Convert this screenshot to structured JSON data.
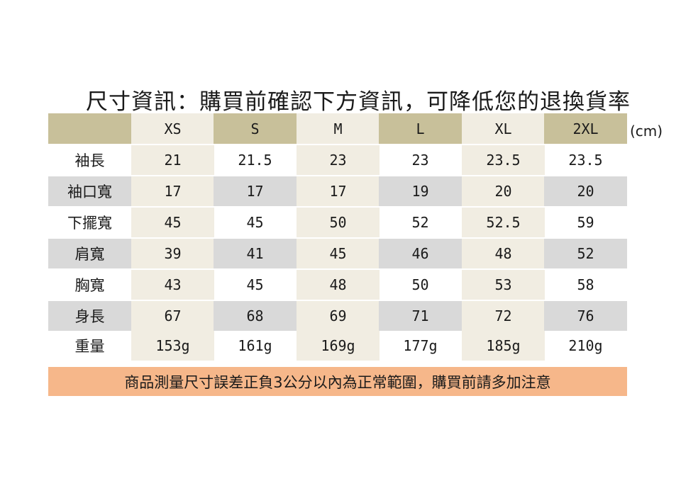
{
  "title": "尺寸資訊：購買前確認下方資訊，可降低您的退換貨率",
  "unit": "(cm)",
  "sizes": [
    "XS",
    "S",
    "M",
    "L",
    "XL",
    "2XL"
  ],
  "rows": [
    {
      "label": "袖長",
      "values": [
        "21",
        "21.5",
        "23",
        "23",
        "23.5",
        "23.5"
      ]
    },
    {
      "label": "袖口寬",
      "values": [
        "17",
        "17",
        "17",
        "19",
        "20",
        "20"
      ]
    },
    {
      "label": "下擺寬",
      "values": [
        "45",
        "45",
        "50",
        "52",
        "52.5",
        "59"
      ]
    },
    {
      "label": "肩寬",
      "values": [
        "39",
        "41",
        "45",
        "46",
        "48",
        "52"
      ]
    },
    {
      "label": "胸寬",
      "values": [
        "43",
        "45",
        "48",
        "50",
        "53",
        "58"
      ]
    },
    {
      "label": "身長",
      "values": [
        "67",
        "68",
        "69",
        "71",
        "72",
        "76"
      ]
    },
    {
      "label": "重量",
      "values": [
        "153g",
        "161g",
        "169g",
        "177g",
        "185g",
        "210g"
      ]
    }
  ],
  "note": "商品測量尺寸誤差正負3公分以內為正常範圍，購買前請多加注意",
  "colors": {
    "header_bg": "#c8c09a",
    "stripe_bg": "#d9d9d9",
    "column_bg": "#f1ede2",
    "note_bg": "#f6b78a"
  }
}
